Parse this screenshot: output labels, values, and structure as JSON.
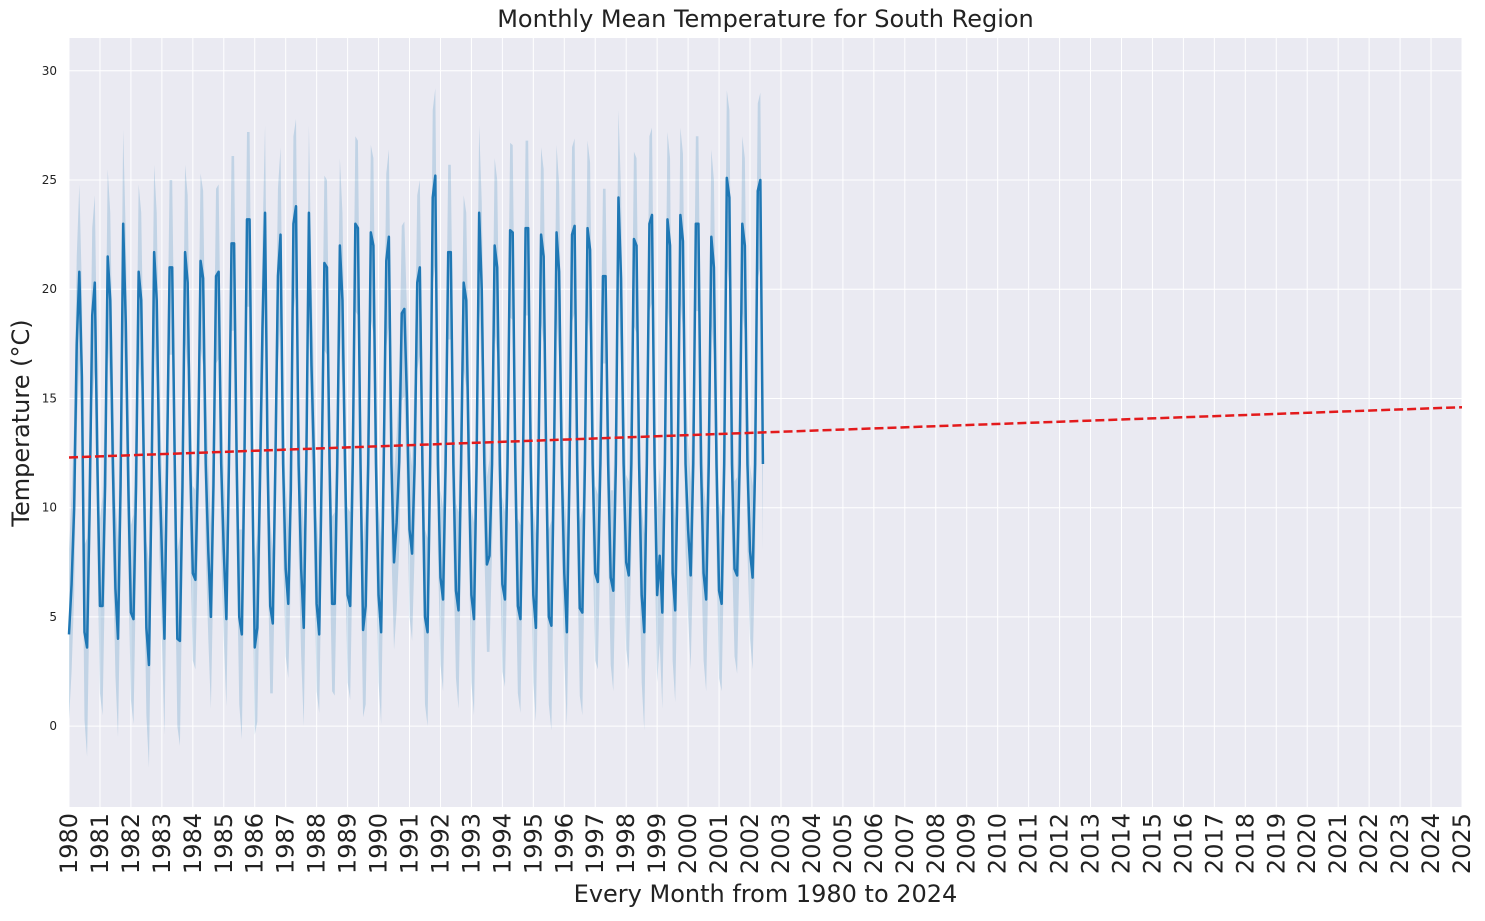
{
  "chart_data": {
    "type": "line",
    "title": "Monthly Mean Temperature for South Region",
    "xlabel": "Every Month from 1980 to 2024",
    "ylabel": "Temperature (°C)",
    "xlim": [
      "1980-01",
      "2025-01"
    ],
    "ylim": [
      -3.7,
      31.5
    ],
    "grid": true,
    "x_tick_labels": [
      "1980",
      "1981",
      "1982",
      "1983",
      "1984",
      "1985",
      "1986",
      "1987",
      "1988",
      "1989",
      "1990",
      "1991",
      "1992",
      "1993",
      "1994",
      "1995",
      "1996",
      "1997",
      "1998",
      "1999",
      "2000",
      "2001",
      "2002",
      "2003",
      "2004",
      "2005",
      "2006",
      "2007",
      "2008",
      "2009",
      "2010",
      "2011",
      "2012",
      "2013",
      "2014",
      "2015",
      "2016",
      "2017",
      "2018",
      "2019",
      "2020",
      "2021",
      "2022",
      "2023",
      "2024",
      "2025"
    ],
    "y_ticks": [
      0,
      5,
      10,
      15,
      20,
      25,
      30
    ],
    "series": [
      {
        "type": "line",
        "color": "#1f77b4",
        "start": "1980-01",
        "frequency": "monthly",
        "values": [
          4.2,
          6.5,
          10.0,
          17.5,
          20.8,
          16.0,
          4.3,
          3.6,
          10.0,
          18.8,
          20.3,
          12.0,
          5.5,
          5.5,
          11.0,
          21.5,
          19.5,
          12.0,
          6.3,
          4.0,
          11.0,
          23.0,
          18.5,
          11.0,
          5.2,
          4.9,
          11.0,
          20.8,
          19.5,
          12.0,
          4.5,
          2.8,
          11.0,
          21.7,
          19.5,
          12.0,
          8.0,
          4.0,
          12.0,
          21.0,
          21.0,
          12.0,
          4.0,
          3.9,
          11.0,
          21.7,
          20.3,
          12.0,
          7.0,
          6.7,
          12.0,
          21.3,
          20.5,
          12.0,
          8.0,
          5.0,
          11.0,
          20.6,
          20.8,
          12.0,
          8.0,
          4.9,
          12.0,
          22.1,
          22.1,
          12.0,
          5.0,
          4.2,
          12.0,
          23.2,
          23.2,
          12.0,
          3.6,
          4.5,
          11.0,
          18.2,
          23.5,
          12.0,
          5.5,
          4.7,
          12.0,
          20.6,
          22.5,
          12.0,
          7.2,
          5.6,
          10.8,
          23.0,
          23.8,
          12.0,
          7.2,
          4.5,
          12.0,
          23.5,
          16.5,
          12.0,
          5.6,
          4.2,
          12.0,
          21.2,
          21.0,
          12.0,
          5.6,
          5.6,
          12.0,
          22.0,
          19.5,
          12.0,
          6.0,
          5.5,
          12.0,
          23.0,
          22.8,
          12.0,
          4.4,
          5.5,
          12.0,
          22.6,
          22.0,
          12.0,
          6.0,
          4.3,
          12.0,
          21.3,
          22.4,
          12.0,
          7.5,
          9.3,
          12.1,
          18.9,
          19.1,
          15.0,
          9.0,
          7.9,
          12.0,
          20.3,
          21.0,
          12.0,
          5.0,
          4.3,
          12.0,
          24.2,
          25.2,
          12.0,
          6.8,
          5.8,
          12.0,
          21.7,
          21.7,
          12.0,
          6.2,
          5.3,
          12.0,
          20.3,
          19.5,
          12.0,
          6.0,
          4.9,
          12.0,
          23.5,
          20.0,
          12.0,
          7.4,
          7.8,
          12.0,
          22.0,
          21.0,
          12.0,
          6.5,
          5.8,
          12.0,
          22.7,
          22.6,
          12.0,
          5.5,
          4.9,
          12.0,
          22.8,
          22.8,
          12.0,
          6.0,
          4.5,
          12.0,
          22.5,
          21.5,
          12.0,
          5.0,
          4.6,
          12.0,
          22.6,
          20.8,
          12.0,
          7.0,
          4.3,
          11.4,
          22.5,
          22.9,
          12.0,
          5.4,
          5.2,
          12.0,
          22.8,
          21.8,
          12.0,
          7.0,
          6.6,
          12.0,
          20.6,
          20.6,
          12.0,
          6.8,
          6.2,
          12.0,
          24.2,
          20.5,
          12.0,
          7.5,
          6.9,
          12.0,
          22.3,
          22.0,
          12.0,
          6.0,
          4.3,
          12.0,
          23.0,
          23.4,
          12.0,
          6.0,
          7.8,
          5.2,
          12.0,
          23.2,
          22.0,
          7.0,
          5.3,
          12.0,
          23.4,
          22.2,
          12.0,
          9.0,
          6.9,
          12.0,
          23.0,
          23.0,
          12.0,
          7.0,
          5.8,
          12.0,
          22.4,
          21.0,
          12.0,
          6.2,
          5.6,
          12.0,
          25.1,
          24.2,
          12.0,
          7.2,
          6.9,
          12.0,
          23.0,
          22.0,
          12.0,
          8.0,
          6.8,
          12.0,
          24.5,
          25.0,
          12.0
        ],
        "uncertainty_band": {
          "color": "#1f77b4",
          "lower": [
            0.3,
            2.5,
            6.0,
            13.5,
            16.8,
            12.0,
            0.3,
            -1.4,
            6.0,
            14.8,
            16.3,
            8.0,
            1.5,
            0.5,
            7.0,
            17.5,
            15.5,
            8.0,
            2.3,
            -0.5,
            7.0,
            18.5,
            14.5,
            7.0,
            1.2,
            0.1,
            7.0,
            16.8,
            15.5,
            8.0,
            0.5,
            -1.9,
            7.0,
            17.7,
            15.5,
            8.0,
            4.0,
            -0.4,
            8.0,
            17.0,
            17.0,
            8.0,
            0.0,
            -0.9,
            7.0,
            17.7,
            16.3,
            8.0,
            3.0,
            2.6,
            8.0,
            17.3,
            16.5,
            8.0,
            4.0,
            0.8,
            7.0,
            16.6,
            16.8,
            8.0,
            4.0,
            0.9,
            8.0,
            18.1,
            18.1,
            8.0,
            1.0,
            -0.6,
            8.0,
            19.2,
            19.2,
            8.0,
            -0.4,
            0.2,
            7.0,
            14.2,
            19.5,
            8.0,
            1.5,
            1.5,
            8.0,
            16.6,
            18.5,
            8.0,
            3.2,
            2.2,
            6.8,
            19.0,
            19.8,
            8.0,
            3.2,
            0.0,
            8.0,
            19.5,
            12.5,
            8.0,
            1.6,
            0.6,
            8.0,
            17.2,
            17.0,
            8.0,
            1.6,
            1.4,
            8.0,
            18.0,
            15.5,
            8.0,
            2.0,
            1.2,
            8.0,
            19.0,
            18.8,
            8.0,
            0.4,
            1.0,
            8.0,
            18.6,
            18.0,
            8.0,
            2.0,
            0.1,
            8.0,
            17.3,
            18.4,
            8.0,
            3.5,
            5.3,
            8.1,
            14.9,
            15.1,
            11.0,
            5.0,
            3.9,
            8.0,
            16.3,
            17.0,
            8.0,
            1.0,
            0.0,
            8.0,
            20.2,
            21.2,
            8.0,
            2.8,
            1.6,
            8.0,
            17.7,
            17.7,
            8.0,
            2.2,
            0.8,
            8.0,
            16.3,
            15.5,
            8.0,
            2.0,
            0.5,
            8.0,
            19.5,
            16.0,
            8.0,
            3.4,
            3.4,
            8.0,
            18.0,
            17.0,
            8.0,
            2.5,
            1.8,
            8.0,
            18.7,
            18.6,
            8.0,
            1.5,
            0.6,
            8.0,
            18.8,
            18.8,
            8.0,
            2.0,
            0.2,
            8.0,
            18.5,
            17.5,
            8.0,
            1.0,
            -0.2,
            8.0,
            18.6,
            16.8,
            8.0,
            3.0,
            0.0,
            7.4,
            18.5,
            18.9,
            8.0,
            1.4,
            0.5,
            8.0,
            18.8,
            17.8,
            8.0,
            3.0,
            2.6,
            8.0,
            16.6,
            16.6,
            8.0,
            2.8,
            1.6,
            8.0,
            20.2,
            16.5,
            8.0,
            3.5,
            2.6,
            8.0,
            18.3,
            18.0,
            8.0,
            2.0,
            -0.2,
            8.0,
            19.0,
            19.4,
            8.0,
            2.0,
            3.8,
            0.8,
            8.0,
            19.2,
            18.0,
            3.0,
            1.1,
            8.0,
            19.4,
            18.2,
            8.0,
            5.0,
            2.6,
            8.0,
            19.0,
            19.0,
            8.0,
            3.0,
            1.6,
            8.0,
            18.4,
            17.0,
            8.0,
            2.2,
            1.6,
            8.0,
            21.1,
            20.2,
            8.0,
            3.2,
            2.4,
            8.0,
            19.0,
            18.0,
            8.0,
            4.0,
            2.6,
            8.0,
            20.5,
            21.0,
            8.0
          ],
          "upper": [
            8.1,
            10.5,
            14.0,
            21.5,
            24.8,
            20.0,
            8.3,
            8.6,
            14.0,
            22.8,
            24.3,
            16.0,
            9.5,
            10.5,
            15.0,
            25.5,
            23.5,
            16.0,
            10.3,
            8.5,
            15.0,
            27.3,
            22.5,
            15.0,
            9.2,
            9.7,
            15.0,
            24.8,
            23.5,
            16.0,
            8.5,
            7.5,
            15.0,
            25.7,
            23.5,
            16.0,
            12.0,
            8.4,
            16.0,
            25.0,
            25.0,
            16.0,
            8.0,
            8.7,
            15.0,
            25.7,
            24.3,
            16.0,
            11.0,
            10.8,
            16.0,
            25.3,
            24.5,
            16.0,
            12.0,
            9.2,
            15.0,
            24.6,
            24.8,
            16.0,
            12.0,
            8.9,
            16.0,
            26.1,
            26.1,
            16.0,
            9.0,
            9.0,
            16.0,
            27.2,
            27.2,
            16.0,
            7.6,
            8.8,
            15.0,
            22.2,
            27.5,
            16.0,
            9.5,
            7.9,
            16.0,
            24.6,
            26.5,
            16.0,
            11.2,
            9.0,
            14.8,
            27.0,
            27.8,
            16.0,
            11.2,
            9.0,
            16.0,
            27.5,
            20.5,
            16.0,
            9.6,
            7.8,
            16.0,
            25.2,
            25.0,
            16.0,
            9.6,
            9.8,
            16.0,
            26.0,
            23.5,
            16.0,
            10.0,
            9.8,
            16.0,
            27.0,
            26.8,
            16.0,
            8.4,
            10.0,
            16.0,
            26.6,
            26.0,
            16.0,
            10.0,
            8.5,
            16.0,
            25.3,
            26.4,
            16.0,
            11.5,
            13.3,
            16.1,
            22.9,
            23.1,
            19.0,
            13.0,
            11.9,
            16.0,
            24.3,
            25.0,
            16.0,
            9.0,
            8.6,
            16.0,
            28.2,
            29.2,
            16.0,
            10.8,
            10.0,
            16.0,
            25.7,
            25.7,
            16.0,
            10.2,
            9.8,
            16.0,
            24.3,
            23.5,
            16.0,
            10.0,
            9.3,
            16.0,
            27.5,
            24.0,
            16.0,
            11.4,
            12.2,
            16.0,
            26.0,
            25.0,
            16.0,
            10.5,
            9.8,
            16.0,
            26.7,
            26.6,
            16.0,
            9.5,
            9.2,
            16.0,
            26.8,
            26.8,
            16.0,
            10.0,
            8.8,
            16.0,
            26.5,
            25.5,
            16.0,
            9.0,
            9.4,
            16.0,
            26.6,
            24.8,
            16.0,
            11.0,
            8.6,
            15.4,
            26.5,
            26.9,
            16.0,
            9.4,
            9.9,
            16.0,
            26.8,
            25.8,
            16.0,
            11.0,
            10.6,
            16.0,
            24.6,
            24.6,
            16.0,
            10.8,
            10.8,
            16.0,
            28.2,
            24.5,
            16.0,
            11.5,
            11.2,
            16.0,
            26.3,
            26.0,
            16.0,
            10.0,
            8.8,
            16.0,
            27.0,
            27.4,
            16.0,
            10.0,
            11.8,
            9.6,
            16.0,
            27.2,
            26.0,
            11.0,
            9.5,
            16.0,
            27.4,
            26.2,
            16.0,
            13.0,
            11.2,
            16.0,
            27.0,
            27.0,
            16.0,
            11.0,
            10.0,
            16.0,
            26.4,
            25.0,
            16.0,
            10.2,
            9.6,
            16.0,
            29.1,
            28.2,
            16.0,
            11.2,
            11.4,
            16.0,
            27.0,
            26.0,
            16.0,
            12.0,
            11.0,
            16.0,
            28.5,
            29.0,
            16.0
          ]
        }
      },
      {
        "type": "line",
        "style": "dashed",
        "color": "#e31a1c",
        "x": [
          "1980-01",
          "2025-01"
        ],
        "values": [
          12.3,
          14.6
        ]
      }
    ]
  }
}
